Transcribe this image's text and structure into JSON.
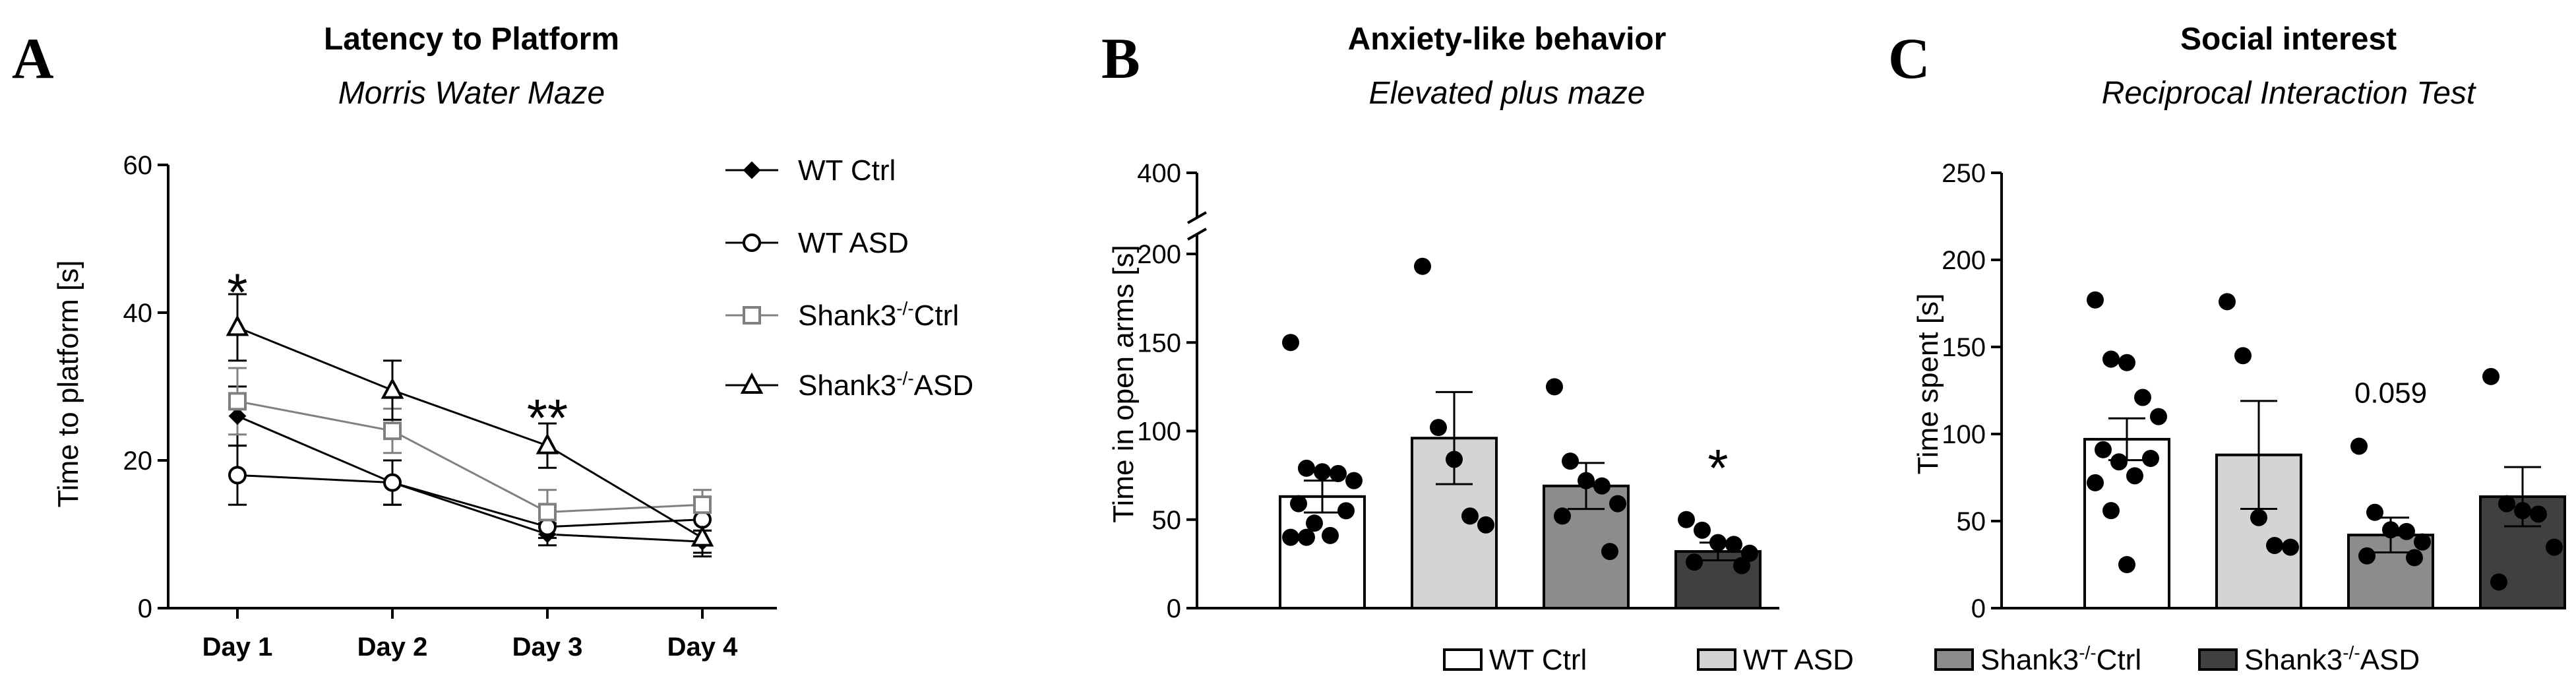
{
  "figure": {
    "panel_labels": [
      "A",
      "B",
      "C"
    ]
  },
  "chart_data": [
    {
      "panel": "A",
      "type": "line",
      "title": "Latency to Platform",
      "subtitle": "Morris Water Maze",
      "ylabel": "Time to platform [s]",
      "xlabel": "",
      "ylim": [
        0,
        60
      ],
      "yticks": [
        0,
        20,
        40,
        60
      ],
      "categories": [
        "Day 1",
        "Day 2",
        "Day 3",
        "Day 4"
      ],
      "series": [
        {
          "name": "WT Ctrl",
          "marker": "diamond",
          "values": [
            26,
            17,
            10,
            9
          ],
          "errors": [
            4,
            3,
            1.5,
            1.5
          ]
        },
        {
          "name": "WT ASD",
          "marker": "circle",
          "values": [
            18,
            17,
            11,
            12
          ],
          "errors": [
            4,
            3,
            1.5,
            1.5
          ]
        },
        {
          "name": "Shank3-/-Ctrl",
          "marker": "square",
          "values": [
            28,
            24,
            13,
            14
          ],
          "errors": [
            4.5,
            3,
            3,
            2
          ]
        },
        {
          "name": "Shank3-/-ASD",
          "marker": "triangle",
          "values": [
            38,
            29.5,
            22,
            9.5
          ],
          "errors": [
            4.5,
            4,
            3,
            2.5
          ]
        }
      ],
      "legend": [
        {
          "pre": "WT Ctrl",
          "sup": "",
          "post": ""
        },
        {
          "pre": "WT ASD",
          "sup": "",
          "post": ""
        },
        {
          "pre": "Shank3",
          "sup": "-/-",
          "post": "Ctrl"
        },
        {
          "pre": "Shank3",
          "sup": "-/-",
          "post": "ASD"
        }
      ],
      "annotations": [
        {
          "text": "*",
          "category": "Day 1",
          "y": 43
        },
        {
          "text": "**",
          "category": "Day 3",
          "y": 26
        }
      ]
    },
    {
      "panel": "B",
      "type": "bar",
      "title": "Anxiety-like behavior",
      "subtitle": "Elevated plus maze",
      "ylabel": "Time in open arms [s]",
      "ylim": [
        0,
        200
      ],
      "yticks": [
        0,
        50,
        100,
        150,
        200
      ],
      "axis_break": {
        "top_tick": 400
      },
      "categories": [
        "WT Ctrl",
        "WT ASD",
        "Shank3-/-Ctrl",
        "Shank3-/-ASD"
      ],
      "values": [
        63,
        96,
        69,
        32
      ],
      "errors": [
        9,
        26,
        13,
        5
      ],
      "colors": [
        "#ffffff",
        "#d4d4d4",
        "#8c8c8c",
        "#404040"
      ],
      "points": [
        [
          150,
          79,
          77,
          76,
          72,
          59,
          55,
          48,
          41,
          40,
          40
        ],
        [
          193,
          102,
          84,
          52,
          47
        ],
        [
          125,
          83,
          72,
          69,
          59,
          52,
          32
        ],
        [
          50,
          44,
          37,
          36,
          31,
          26,
          24
        ]
      ],
      "annotations": [
        {
          "text": "*",
          "category": "Shank3-/-ASD",
          "y": 80
        }
      ]
    },
    {
      "panel": "C",
      "type": "bar",
      "title": "Social interest",
      "subtitle": "Reciprocal Interaction Test",
      "ylabel": "Time spent [s]",
      "ylim": [
        0,
        250
      ],
      "yticks": [
        0,
        50,
        100,
        150,
        200,
        250
      ],
      "categories": [
        "WT Ctrl",
        "WT ASD",
        "Shank3-/-Ctrl",
        "Shank3-/-ASD"
      ],
      "values": [
        97,
        88,
        42,
        64
      ],
      "errors": [
        12,
        31,
        10,
        17
      ],
      "colors": [
        "#ffffff",
        "#d4d4d4",
        "#8c8c8c",
        "#404040"
      ],
      "points": [
        [
          177,
          143,
          141,
          121,
          110,
          91,
          86,
          84,
          76,
          72,
          56,
          25
        ],
        [
          176,
          145,
          52,
          36,
          35
        ],
        [
          93,
          55,
          45,
          44,
          38,
          30,
          29
        ],
        [
          133,
          60,
          56,
          54,
          35,
          15
        ]
      ],
      "annotations": [
        {
          "text": "0.059",
          "category": "Shank3-/-Ctrl",
          "y": 118
        }
      ]
    }
  ],
  "shared_legend": [
    {
      "pre": "WT Ctrl",
      "sup": "",
      "post": "",
      "color": "#ffffff"
    },
    {
      "pre": "WT ASD",
      "sup": "",
      "post": "",
      "color": "#d4d4d4"
    },
    {
      "pre": "Shank3",
      "sup": "-/-",
      "post": "Ctrl",
      "color": "#8c8c8c"
    },
    {
      "pre": "Shank3",
      "sup": "-/-",
      "post": "ASD",
      "color": "#404040"
    }
  ]
}
